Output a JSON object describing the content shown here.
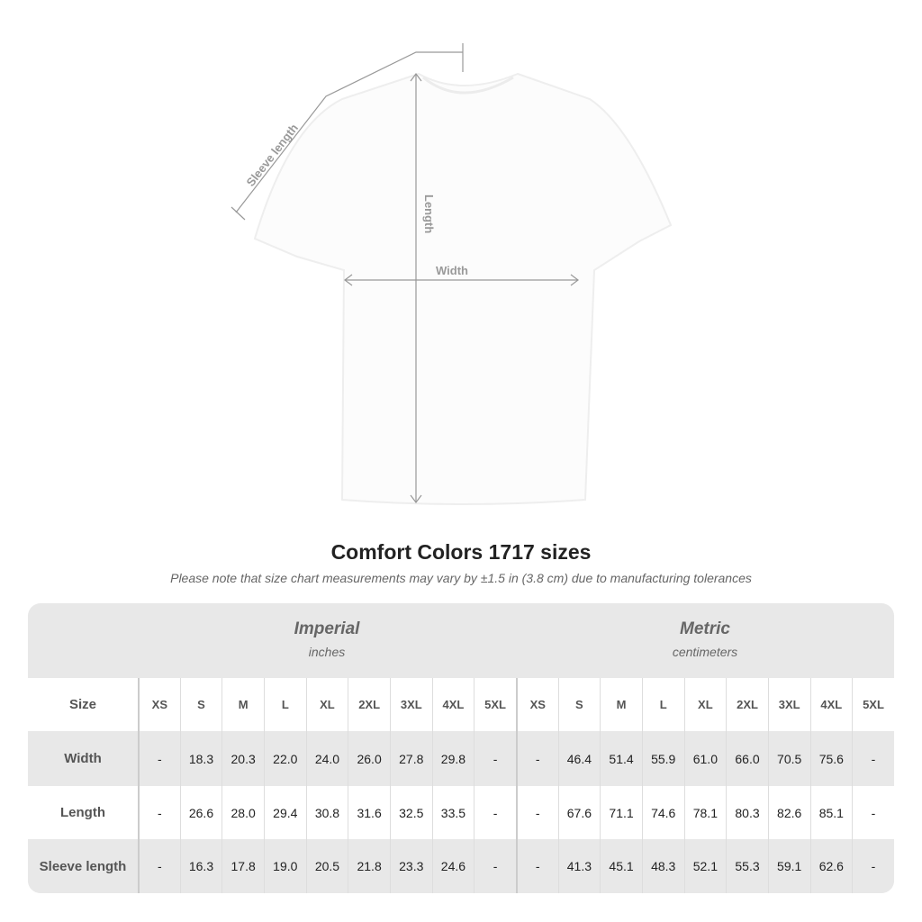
{
  "diagram": {
    "sleeve_label": "Sleeve length",
    "length_label": "Length",
    "width_label": "Width"
  },
  "title": "Comfort Colors 1717 sizes",
  "note": "Please note that size chart measurements may vary by ±1.5 in (3.8 cm) due to manufacturing tolerances",
  "imperial": {
    "heading": "Imperial",
    "unit": "inches"
  },
  "metric": {
    "heading": "Metric",
    "unit": "centimeters"
  },
  "size_label": "Size",
  "sizes": [
    "XS",
    "S",
    "M",
    "L",
    "XL",
    "2XL",
    "3XL",
    "4XL",
    "5XL"
  ],
  "rows": [
    {
      "label": "Width",
      "imperial": [
        "-",
        "18.3",
        "20.3",
        "22.0",
        "24.0",
        "26.0",
        "27.8",
        "29.8",
        "-"
      ],
      "metric": [
        "-",
        "46.4",
        "51.4",
        "55.9",
        "61.0",
        "66.0",
        "70.5",
        "75.6",
        "-"
      ]
    },
    {
      "label": "Length",
      "imperial": [
        "-",
        "26.6",
        "28.0",
        "29.4",
        "30.8",
        "31.6",
        "32.5",
        "33.5",
        "-"
      ],
      "metric": [
        "-",
        "67.6",
        "71.1",
        "74.6",
        "78.1",
        "80.3",
        "82.6",
        "85.1",
        "-"
      ]
    },
    {
      "label": "Sleeve length",
      "imperial": [
        "-",
        "16.3",
        "17.8",
        "19.0",
        "20.5",
        "21.8",
        "23.3",
        "24.6",
        "-"
      ],
      "metric": [
        "-",
        "41.3",
        "45.1",
        "48.3",
        "52.1",
        "55.3",
        "59.1",
        "62.6",
        "-"
      ]
    }
  ]
}
